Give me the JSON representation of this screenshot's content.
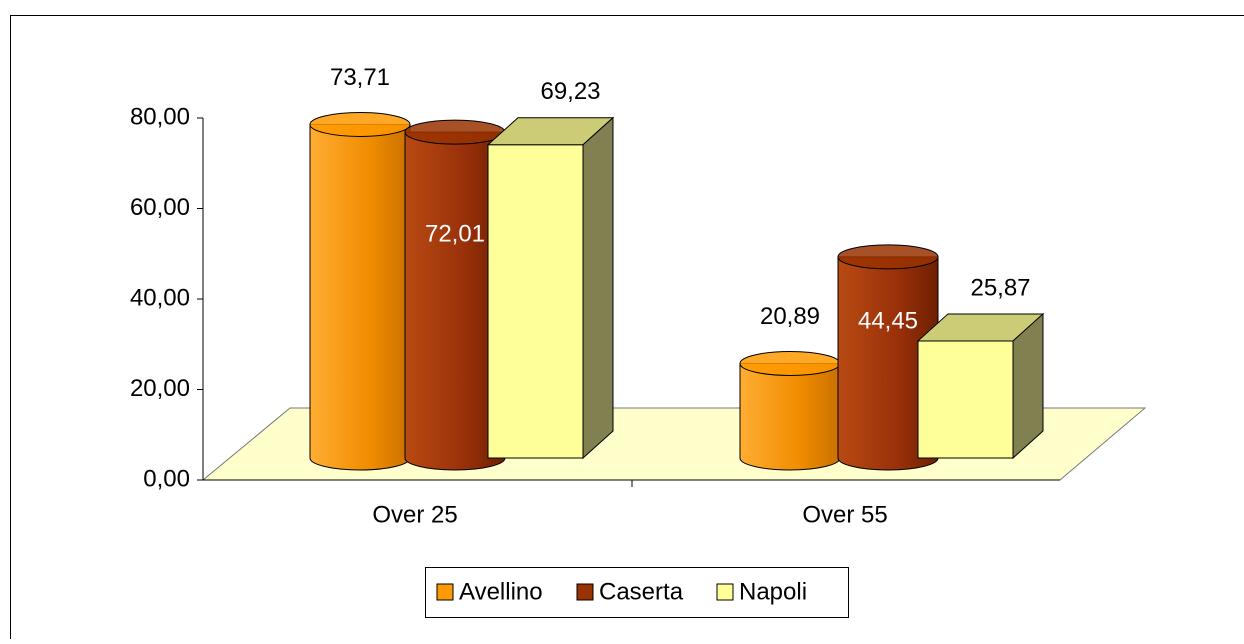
{
  "chart_data": {
    "type": "bar3d",
    "categories": [
      "Over 25",
      "Over 55"
    ],
    "series": [
      {
        "name": "Avellino",
        "color": "#ff9900",
        "shape": "cylinder",
        "values": [
          73.71,
          20.89
        ],
        "value_labels": [
          "73,71",
          "20,89"
        ]
      },
      {
        "name": "Caserta",
        "color": "#993300",
        "shape": "cylinder",
        "values": [
          72.01,
          44.45
        ],
        "value_labels": [
          "72,01",
          "44,45"
        ]
      },
      {
        "name": "Napoli",
        "color": "#ffff99",
        "shape": "box",
        "values": [
          69.23,
          25.87
        ],
        "value_labels": [
          "69,23",
          "25,87"
        ]
      }
    ],
    "ylim": [
      0,
      80
    ],
    "yticks": [
      {
        "value": 0,
        "label": "0,00"
      },
      {
        "value": 20,
        "label": "20,00"
      },
      {
        "value": 40,
        "label": "40,00"
      },
      {
        "value": 60,
        "label": "60,00"
      },
      {
        "value": 80,
        "label": "80,00"
      }
    ],
    "legend": "bottom"
  }
}
